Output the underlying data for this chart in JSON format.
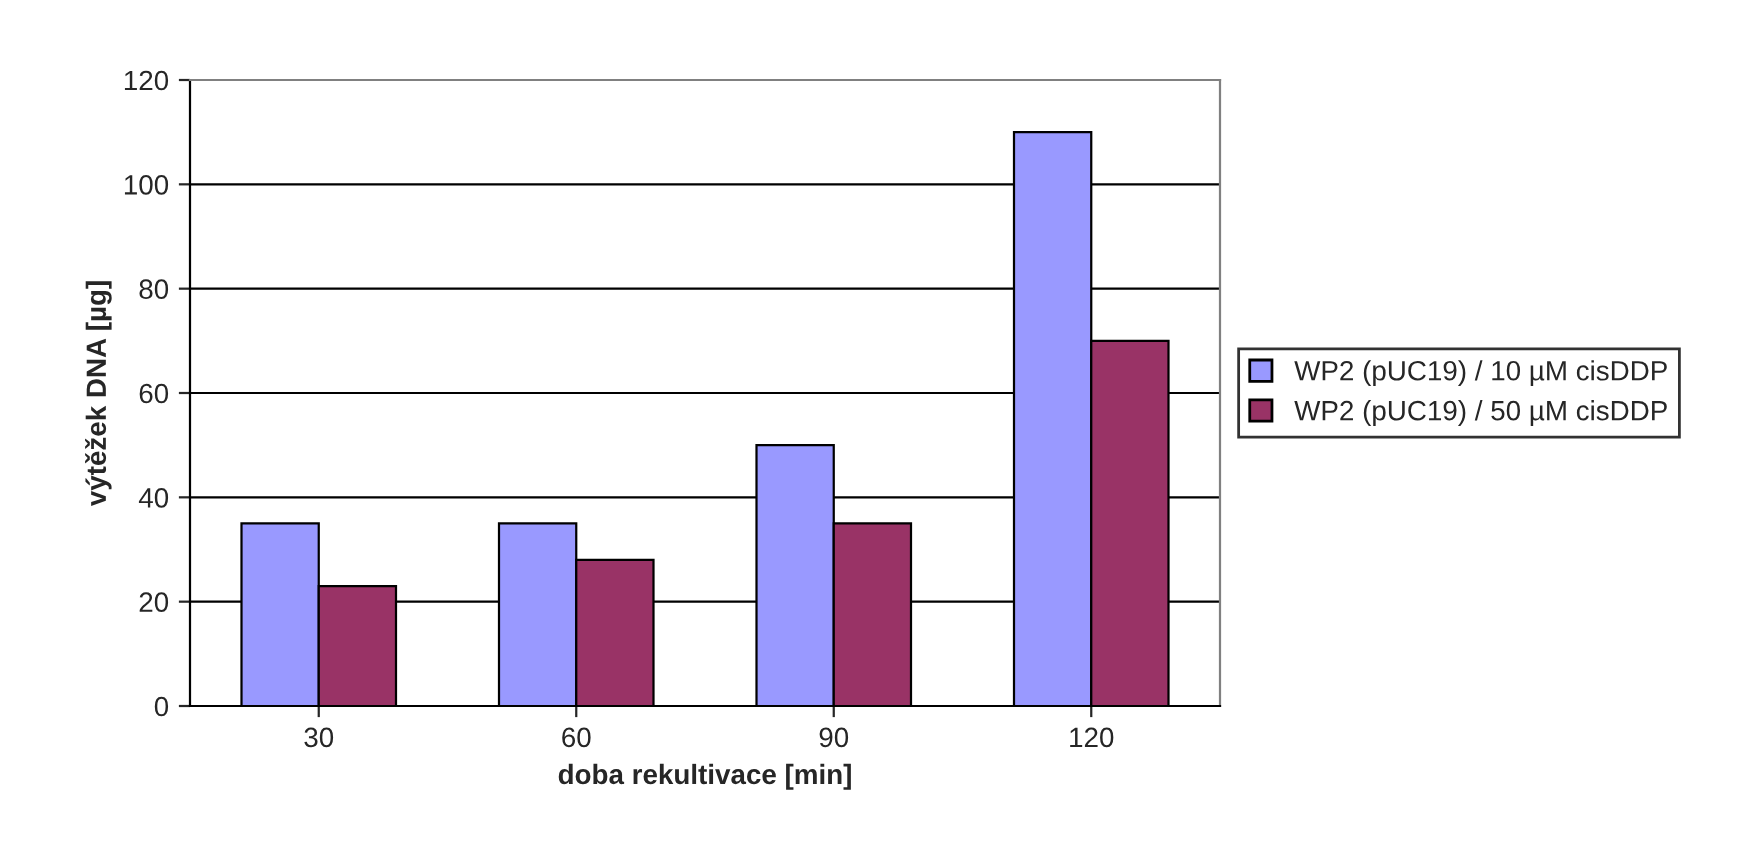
{
  "chart_data": {
    "type": "bar",
    "xlabel": "doba rekultivace [min]",
    "ylabel": "výtěžek DNA [µg]",
    "categories": [
      "30",
      "60",
      "90",
      "120"
    ],
    "series": [
      {
        "name": "WP2 (pUC19) / 10 µM cisDDP",
        "color": "#9999ff",
        "values": [
          35,
          35,
          50,
          110
        ]
      },
      {
        "name": "WP2 (pUC19) / 50 µM cisDDP",
        "color": "#993366",
        "values": [
          23,
          28,
          35,
          70
        ]
      }
    ],
    "ylim": [
      0,
      120
    ],
    "yticks": [
      0,
      20,
      40,
      60,
      80,
      100,
      120
    ],
    "grid": "y",
    "legend": "right"
  }
}
